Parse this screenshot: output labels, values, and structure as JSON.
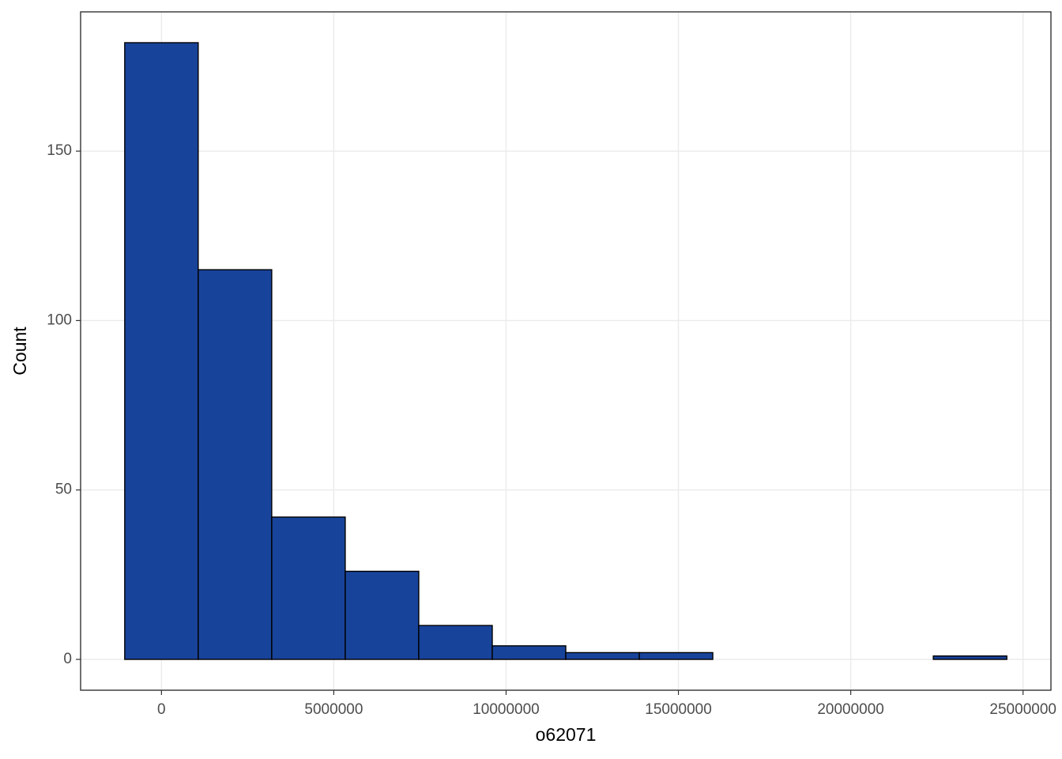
{
  "chart_data": {
    "type": "histogram",
    "x_label": "o62071",
    "y_label": "Count",
    "bins": [
      -1066500,
      1066500,
      3199500,
      5332500,
      7465500,
      9598500,
      11731500,
      13864500,
      15997500,
      18130500,
      20263500,
      22396500,
      24529500
    ],
    "values": [
      182,
      115,
      42,
      26,
      10,
      4,
      2,
      2,
      0,
      0,
      0,
      1
    ],
    "color": "#18439a",
    "edgecolor": "#000000",
    "xlim": [
      -2346300,
      25809300
    ],
    "ylim": [
      -9.1,
      191.1
    ],
    "xticks": [
      0,
      5000000,
      10000000,
      15000000,
      20000000,
      25000000
    ],
    "yticks": [
      0,
      50,
      100,
      150
    ],
    "grid": true
  }
}
